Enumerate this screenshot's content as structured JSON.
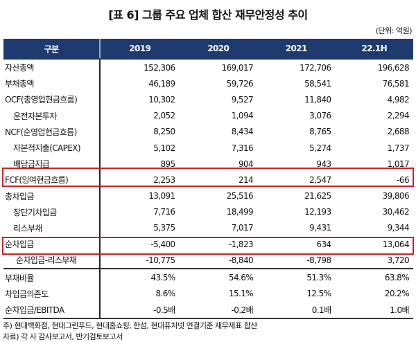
{
  "title": "[표 6] 그룹 주요 업체 합산 재무안정성 추이",
  "unit": "(단위: 억원)",
  "headers": [
    "구분",
    "2019",
    "2020",
    "2021",
    "22.1H"
  ],
  "rows": [
    {
      "label": "자산총액",
      "v": [
        "152,306",
        "169,017",
        "172,706",
        "196,628"
      ]
    },
    {
      "label": "부채총액",
      "v": [
        "46,189",
        "59,726",
        "58,541",
        "76,581"
      ]
    },
    {
      "label": "OCF(총영업현금흐름)",
      "v": [
        "10,302",
        "9,527",
        "11,840",
        "4,982"
      ]
    },
    {
      "label": "운전자본투자",
      "v": [
        "2,052",
        "1,094",
        "3,076",
        "2,294"
      ]
    },
    {
      "label": "NCF(순영업현금흐름)",
      "v": [
        "8,250",
        "8,434",
        "8,765",
        "2,688"
      ]
    },
    {
      "label": "자본적지출(CAPEX)",
      "v": [
        "5,102",
        "7,316",
        "5,274",
        "1,737"
      ]
    },
    {
      "label": "배당금지급",
      "v": [
        "895",
        "904",
        "943",
        "1,017"
      ]
    },
    {
      "label": "FCF(잉여현금흐름)",
      "v": [
        "2,253",
        "214",
        "2,547",
        "-66"
      ]
    },
    {
      "label": "총차입금",
      "v": [
        "13,091",
        "25,516",
        "21,625",
        "39,806"
      ]
    },
    {
      "label": "장단기차입금",
      "v": [
        "7,716",
        "18,499",
        "12,193",
        "30,462"
      ]
    },
    {
      "label": "리스부채",
      "v": [
        "5,375",
        "7,017",
        "9,431",
        "9,344"
      ]
    },
    {
      "label": "순차입금",
      "v": [
        "-5,400",
        "-1,823",
        "634",
        "13,064"
      ]
    },
    {
      "label": "순차입금-리스부채",
      "v": [
        "-10,775",
        "-8,840",
        "-8,798",
        "3,720"
      ]
    },
    {
      "label": "부채비율",
      "v": [
        "43.5%",
        "54.6%",
        "51.3%",
        "63.8%"
      ]
    },
    {
      "label": "차입금의존도",
      "v": [
        "8.6%",
        "15.1%",
        "12.5%",
        "20.2%"
      ]
    },
    {
      "label": "순차입금/EBITDA",
      "v": [
        "-0.5배",
        "-0.2배",
        "0.1배",
        "1.0배"
      ]
    }
  ],
  "notes": [
    "주) 현대백화점, 현대그린푸드, 현대홈쇼핑, 한섬, 현대퓨처넷 연결기준 재무제표 합산",
    "자료) 각 사 감사보고서, 반기검토보고서"
  ],
  "highlight_color": "#d0202a"
}
